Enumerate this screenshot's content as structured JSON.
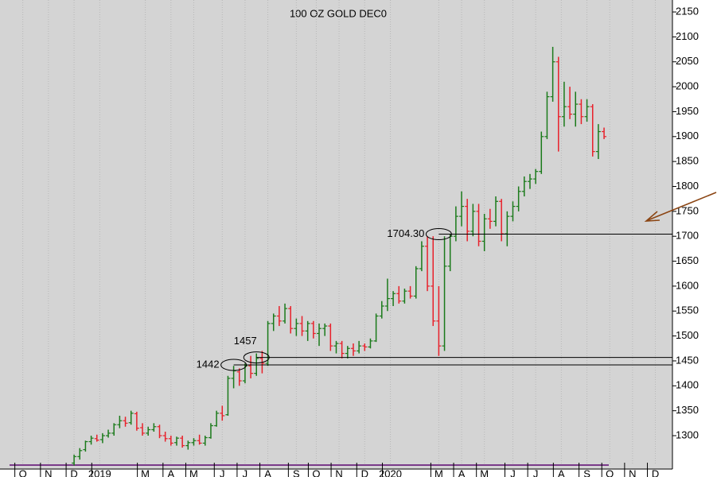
{
  "chart_data": {
    "type": "ohlc",
    "title": "100 OZ GOLD DEC0",
    "up_color": "#1a7a1a",
    "down_color": "#e8202a",
    "grid": true,
    "xlim": [
      -2,
      116
    ],
    "ylim": [
      1241,
      2174
    ],
    "yticks": [
      1300,
      1350,
      1400,
      1450,
      1500,
      1550,
      1600,
      1650,
      1700,
      1750,
      1800,
      1850,
      1900,
      1950,
      2000,
      2050,
      2100,
      2150
    ],
    "xticks": [
      {
        "value": 2,
        "label": "O"
      },
      {
        "value": 6.5,
        "label": "N"
      },
      {
        "value": 11,
        "label": "D"
      },
      {
        "value": 15.5,
        "label": "2019"
      },
      {
        "value": 23.5,
        "label": "M"
      },
      {
        "value": 28,
        "label": "A"
      },
      {
        "value": 32,
        "label": "M"
      },
      {
        "value": 37,
        "label": "J"
      },
      {
        "value": 41,
        "label": "J"
      },
      {
        "value": 45,
        "label": "A"
      },
      {
        "value": 50,
        "label": "S"
      },
      {
        "value": 53.5,
        "label": "O"
      },
      {
        "value": 57.5,
        "label": "N"
      },
      {
        "value": 62,
        "label": "D"
      },
      {
        "value": 66.5,
        "label": "2020"
      },
      {
        "value": 75,
        "label": "M"
      },
      {
        "value": 79,
        "label": "A"
      },
      {
        "value": 83,
        "label": "M"
      },
      {
        "value": 88,
        "label": "J"
      },
      {
        "value": 92,
        "label": "J"
      },
      {
        "value": 96.5,
        "label": "A"
      },
      {
        "value": 101,
        "label": "S"
      },
      {
        "value": 105,
        "label": "O"
      },
      {
        "value": 109,
        "label": "N"
      },
      {
        "value": 113,
        "label": "D"
      }
    ],
    "x": [
      11,
      12,
      13,
      14,
      15,
      16,
      17,
      18,
      19,
      20,
      21,
      22,
      23,
      24,
      25,
      26,
      27,
      28,
      29,
      30,
      31,
      32,
      33,
      34,
      35,
      36,
      37,
      38,
      39,
      40,
      41,
      42,
      43,
      44,
      45,
      46,
      47,
      48,
      49,
      50,
      51,
      52,
      53,
      54,
      55,
      56,
      57,
      58,
      59,
      60,
      61,
      62,
      63,
      64,
      65,
      66,
      67,
      68,
      69,
      70,
      71,
      72,
      73,
      74,
      75,
      76,
      77,
      78,
      79,
      80,
      81,
      82,
      83,
      84,
      85,
      86,
      87,
      88,
      89,
      90,
      91,
      92,
      93,
      94,
      95,
      96,
      97,
      98,
      99,
      100,
      101,
      102,
      103,
      104
    ],
    "open": [
      1245,
      1258,
      1272,
      1288,
      1294,
      1292,
      1300,
      1305,
      1322,
      1330,
      1326,
      1344,
      1316,
      1305,
      1312,
      1318,
      1300,
      1294,
      1286,
      1295,
      1280,
      1286,
      1290,
      1285,
      1296,
      1320,
      1345,
      1342,
      1415,
      1428,
      1410,
      1440,
      1425,
      1455,
      1445,
      1525,
      1540,
      1530,
      1555,
      1515,
      1525,
      1510,
      1525,
      1505,
      1515,
      1520,
      1480,
      1485,
      1465,
      1475,
      1470,
      1480,
      1478,
      1490,
      1540,
      1560,
      1575,
      1585,
      1570,
      1590,
      1580,
      1635,
      1680,
      1600,
      1530,
      1480,
      1640,
      1700,
      1740,
      1760,
      1710,
      1750,
      1690,
      1735,
      1730,
      1770,
      1705,
      1740,
      1760,
      1790,
      1810,
      1815,
      1830,
      1900,
      1980,
      2050,
      1940,
      1960,
      1945,
      1965,
      1940,
      1960,
      1870,
      1910
    ],
    "high": [
      1262,
      1275,
      1290,
      1300,
      1302,
      1305,
      1312,
      1325,
      1340,
      1338,
      1350,
      1348,
      1325,
      1318,
      1325,
      1322,
      1308,
      1300,
      1298,
      1300,
      1290,
      1295,
      1302,
      1300,
      1325,
      1350,
      1360,
      1420,
      1440,
      1435,
      1445,
      1460,
      1465,
      1470,
      1530,
      1545,
      1560,
      1565,
      1560,
      1535,
      1540,
      1530,
      1530,
      1525,
      1525,
      1525,
      1490,
      1490,
      1480,
      1485,
      1490,
      1485,
      1495,
      1545,
      1570,
      1615,
      1590,
      1600,
      1595,
      1600,
      1640,
      1690,
      1700,
      1700,
      1600,
      1700,
      1705,
      1760,
      1790,
      1775,
      1765,
      1765,
      1745,
      1755,
      1780,
      1775,
      1750,
      1770,
      1800,
      1820,
      1825,
      1835,
      1910,
      1990,
      2080,
      2060,
      2010,
      2000,
      1990,
      1975,
      1975,
      1965,
      1925,
      1918
    ],
    "low": [
      1240,
      1252,
      1268,
      1282,
      1288,
      1285,
      1296,
      1300,
      1315,
      1318,
      1322,
      1310,
      1300,
      1300,
      1308,
      1295,
      1288,
      1280,
      1280,
      1276,
      1272,
      1280,
      1282,
      1280,
      1294,
      1318,
      1330,
      1340,
      1395,
      1400,
      1405,
      1415,
      1420,
      1425,
      1440,
      1510,
      1520,
      1525,
      1505,
      1500,
      1500,
      1490,
      1495,
      1480,
      1500,
      1470,
      1465,
      1455,
      1455,
      1460,
      1465,
      1470,
      1475,
      1488,
      1535,
      1550,
      1560,
      1565,
      1565,
      1575,
      1575,
      1630,
      1590,
      1520,
      1460,
      1470,
      1630,
      1690,
      1720,
      1690,
      1700,
      1680,
      1670,
      1715,
      1720,
      1690,
      1680,
      1730,
      1750,
      1780,
      1795,
      1805,
      1825,
      1895,
      1970,
      1870,
      1920,
      1935,
      1920,
      1925,
      1930,
      1860,
      1855,
      1895
    ],
    "close": [
      1258,
      1270,
      1288,
      1295,
      1291,
      1300,
      1305,
      1322,
      1330,
      1325,
      1345,
      1315,
      1305,
      1312,
      1318,
      1300,
      1294,
      1285,
      1295,
      1280,
      1286,
      1290,
      1285,
      1296,
      1320,
      1345,
      1340,
      1415,
      1430,
      1410,
      1440,
      1425,
      1455,
      1445,
      1525,
      1540,
      1530,
      1555,
      1515,
      1525,
      1510,
      1525,
      1505,
      1515,
      1520,
      1480,
      1485,
      1465,
      1475,
      1470,
      1480,
      1478,
      1490,
      1540,
      1560,
      1575,
      1585,
      1570,
      1590,
      1580,
      1635,
      1680,
      1600,
      1530,
      1480,
      1640,
      1700,
      1740,
      1760,
      1710,
      1750,
      1690,
      1735,
      1730,
      1770,
      1705,
      1740,
      1760,
      1790,
      1810,
      1815,
      1830,
      1900,
      1980,
      2050,
      1940,
      1960,
      1945,
      1965,
      1940,
      1960,
      1870,
      1910,
      1900
    ],
    "levels": [
      {
        "value": 1704.3,
        "label": "1704.30",
        "start": 75
      },
      {
        "value": 1457,
        "label": "1457",
        "start": 43
      },
      {
        "value": 1442,
        "label": "1442",
        "start": 39
      }
    ]
  }
}
